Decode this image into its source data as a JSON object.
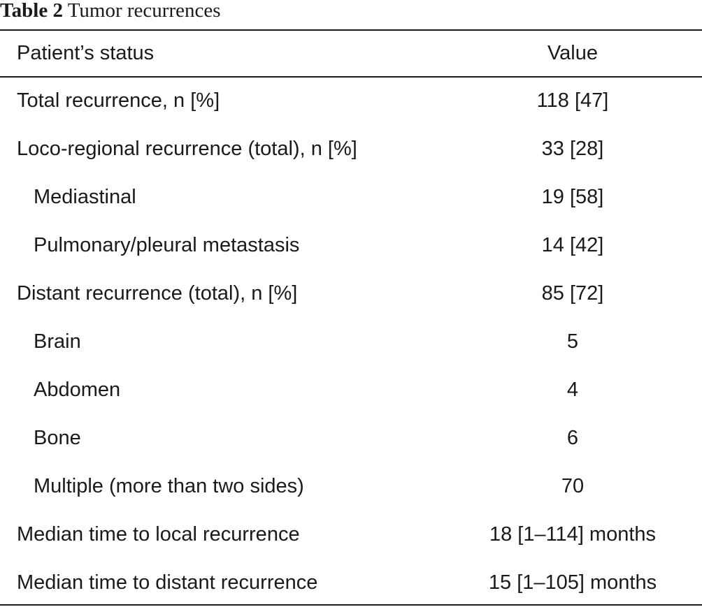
{
  "caption": {
    "label": "Table 2",
    "title": "Tumor recurrences"
  },
  "table": {
    "headers": {
      "status": "Patient’s status",
      "value": "Value"
    },
    "rows": [
      {
        "status": "Total recurrence, n [%]",
        "value": "118 [47]",
        "indent": false
      },
      {
        "status": "Loco-regional recurrence (total), n [%]",
        "value": "33 [28]",
        "indent": false
      },
      {
        "status": "Mediastinal",
        "value": "19 [58]",
        "indent": true
      },
      {
        "status": "Pulmonary/pleural metastasis",
        "value": "14 [42]",
        "indent": true
      },
      {
        "status": "Distant recurrence (total), n [%]",
        "value": "85 [72]",
        "indent": false
      },
      {
        "status": "Brain",
        "value": "5",
        "indent": true
      },
      {
        "status": "Abdomen",
        "value": "4",
        "indent": true
      },
      {
        "status": "Bone",
        "value": "6",
        "indent": true
      },
      {
        "status": "Multiple (more than two sides)",
        "value": "70",
        "indent": true
      },
      {
        "status": "Median time to local recurrence",
        "value": "18 [1–114] months",
        "indent": false
      },
      {
        "status": "Median time to distant recurrence",
        "value": "15 [1–105] months",
        "indent": false
      }
    ]
  }
}
